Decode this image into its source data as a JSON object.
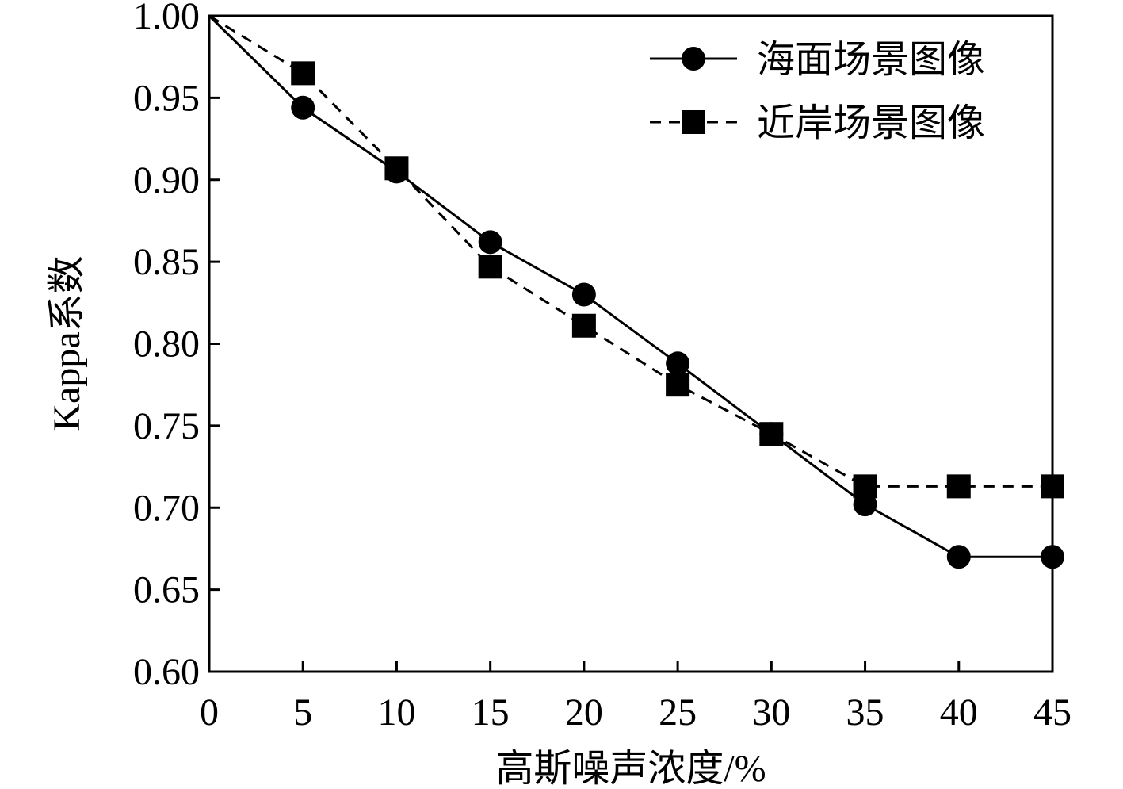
{
  "chart_data": {
    "type": "line",
    "title": "",
    "xlabel": "高斯噪声浓度/%",
    "ylabel": "Kappa系数",
    "xlim": [
      0,
      45
    ],
    "ylim": [
      0.6,
      1.0
    ],
    "x_ticks": [
      "0",
      "5",
      "10",
      "15",
      "20",
      "25",
      "30",
      "35",
      "40",
      "45"
    ],
    "y_ticks": [
      "0.60",
      "0.65",
      "0.70",
      "0.75",
      "0.80",
      "0.85",
      "0.90",
      "0.95",
      "1.00"
    ],
    "legend_position": "top-right",
    "grid": false,
    "series": [
      {
        "name": "海面场景图像",
        "marker": "circle",
        "line_style": "solid",
        "color": "#000000",
        "x": [
          0,
          5,
          10,
          15,
          20,
          25,
          30,
          35,
          40,
          45
        ],
        "values": [
          1.0,
          0.944,
          0.905,
          0.862,
          0.83,
          0.788,
          0.745,
          0.702,
          0.67,
          0.67
        ]
      },
      {
        "name": "近岸场景图像",
        "marker": "square",
        "line_style": "dashed",
        "color": "#000000",
        "x": [
          0,
          5,
          10,
          15,
          20,
          25,
          30,
          35,
          40,
          45
        ],
        "values": [
          1.0,
          0.965,
          0.907,
          0.847,
          0.811,
          0.775,
          0.745,
          0.713,
          0.713,
          0.713
        ]
      }
    ]
  }
}
